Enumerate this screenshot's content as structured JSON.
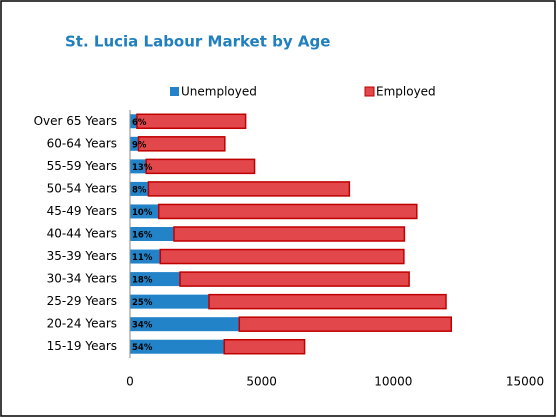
{
  "chart_data": {
    "type": "stacked_bar_horizontal",
    "title": "St. Lucia Labour Market by Age",
    "categories": [
      "Over 65 Years",
      "60-64 Years",
      "55-59 Years",
      "50-54 Years",
      "45-49 Years",
      "40-44 Years",
      "35-39 Years",
      "30-34 Years",
      "25-29 Years",
      "20-24 Years",
      "15-19 Years"
    ],
    "series": [
      {
        "name": "Unemployed",
        "color": "#2383c8",
        "values": [
          265,
          324,
          615,
          700,
          1090,
          1670,
          1150,
          1900,
          3000,
          4150,
          3580
        ],
        "value_labels": [
          "6%",
          "9%",
          "13%",
          "8%",
          "10%",
          "16%",
          "11%",
          "18%",
          "25%",
          "34%",
          "54%"
        ]
      },
      {
        "name": "Employed",
        "color": "#e2474b",
        "values": [
          4125,
          3276,
          4115,
          7630,
          9800,
          8750,
          9250,
          8700,
          9000,
          8050,
          3050
        ]
      }
    ],
    "xlim": [
      0,
      15000
    ],
    "xticks": [
      0,
      5000,
      10000,
      15000
    ],
    "grid": false,
    "legend": "top"
  }
}
